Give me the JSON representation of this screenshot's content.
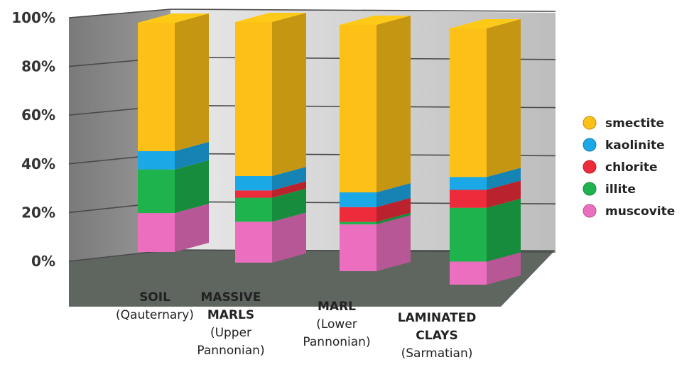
{
  "chart_data": {
    "type": "bar",
    "stacked": true,
    "percent": true,
    "three_d": true,
    "categories": [
      {
        "lines": [
          "SOIL",
          "(Qauternary)"
        ]
      },
      {
        "lines": [
          "MASSIVE",
          "MARLS",
          "(Upper",
          "Pannonian)"
        ]
      },
      {
        "lines": [
          "MARL",
          "(Lower",
          "Pannonian)"
        ]
      },
      {
        "lines": [
          "LAMINATED",
          "CLAYS",
          "(Sarmatian)"
        ]
      }
    ],
    "series": [
      {
        "name": "muscovite",
        "values": [
          17,
          17,
          19,
          9
        ],
        "color": "#ec6fbf"
      },
      {
        "name": "illite",
        "values": [
          19,
          10,
          1,
          21
        ],
        "color": "#1fb34e"
      },
      {
        "name": "chlorite",
        "values": [
          0,
          3,
          6,
          7
        ],
        "color": "#ee2b3b"
      },
      {
        "name": "kaolinite",
        "values": [
          8,
          6,
          6,
          5
        ],
        "color": "#1ba8e6"
      },
      {
        "name": "smectite",
        "values": [
          56,
          64,
          68,
          58
        ],
        "color": "#fdc016"
      }
    ],
    "ylim": [
      0,
      100
    ],
    "yticks": [
      "0%",
      "20%",
      "40%",
      "60%",
      "80%",
      "100%"
    ],
    "grid": true,
    "legend_position": "right"
  }
}
